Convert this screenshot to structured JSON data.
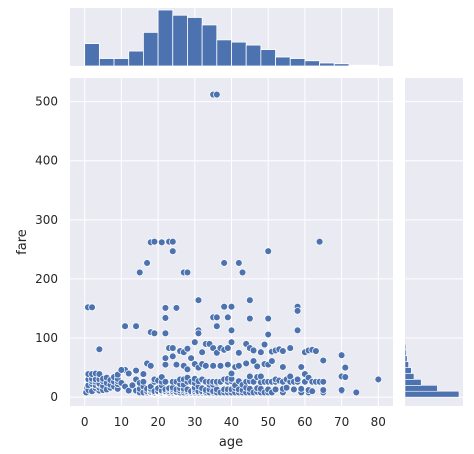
{
  "chart_data": {
    "type": "scatter",
    "title": "",
    "xlabel": "age",
    "ylabel": "fare",
    "xlim": [
      -4,
      84
    ],
    "ylim": [
      -15,
      540
    ],
    "xticks": [
      0,
      10,
      20,
      30,
      40,
      50,
      60,
      70,
      80
    ],
    "yticks": [
      0,
      100,
      200,
      300,
      400,
      500
    ],
    "grid": true,
    "style": "darkgrid",
    "colors": {
      "background": "#eaeaf2",
      "grid": "#ffffff",
      "point_fill": "#4c72b0",
      "point_edge": "#ffffff",
      "bar_fill": "#4c72b0",
      "bar_edge": "#ffffff"
    },
    "marginal_x_histogram": {
      "bin_edges": [
        0,
        4,
        8,
        12,
        16,
        20,
        24,
        28,
        32,
        36,
        40,
        44,
        48,
        52,
        56,
        60,
        64,
        68,
        72,
        76,
        80
      ],
      "counts": [
        30,
        10,
        10,
        20,
        45,
        75,
        68,
        65,
        55,
        35,
        32,
        28,
        22,
        12,
        10,
        7,
        4,
        3,
        1,
        1
      ]
    },
    "marginal_y_histogram": {
      "bin_edges": [
        0,
        10,
        20,
        30,
        40,
        50,
        60,
        70,
        80,
        90,
        100
      ],
      "counts": [
        300,
        180,
        90,
        50,
        35,
        20,
        12,
        8,
        6,
        4
      ]
    },
    "points": [
      [
        0.4,
        8
      ],
      [
        0.7,
        15
      ],
      [
        1,
        12
      ],
      [
        1,
        20
      ],
      [
        1,
        30
      ],
      [
        1,
        39
      ],
      [
        2,
        10
      ],
      [
        2,
        22
      ],
      [
        2,
        27
      ],
      [
        2,
        31
      ],
      [
        2,
        39
      ],
      [
        3,
        15
      ],
      [
        3,
        20
      ],
      [
        3,
        26
      ],
      [
        3,
        30
      ],
      [
        3,
        40
      ],
      [
        4,
        11
      ],
      [
        4,
        16
      ],
      [
        4,
        21
      ],
      [
        4,
        23
      ],
      [
        4,
        30
      ],
      [
        4,
        39
      ],
      [
        5,
        12
      ],
      [
        5,
        19
      ],
      [
        5,
        27
      ],
      [
        5,
        31
      ],
      [
        6,
        13
      ],
      [
        6,
        24
      ],
      [
        6,
        33
      ],
      [
        7,
        16
      ],
      [
        7,
        21
      ],
      [
        7,
        29
      ],
      [
        8,
        18
      ],
      [
        8,
        26
      ],
      [
        8,
        34
      ],
      [
        9,
        14
      ],
      [
        9,
        22
      ],
      [
        9,
        27
      ],
      [
        9,
        31
      ],
      [
        9,
        38
      ],
      [
        10,
        24
      ],
      [
        11,
        18
      ],
      [
        11,
        46
      ],
      [
        12,
        11
      ],
      [
        13,
        20
      ],
      [
        14,
        11
      ],
      [
        14,
        30
      ],
      [
        14,
        45
      ],
      [
        15,
        8
      ],
      [
        15,
        14
      ],
      [
        15,
        24
      ],
      [
        16,
        8
      ],
      [
        16,
        18
      ],
      [
        16,
        26
      ],
      [
        16,
        39
      ],
      [
        17,
        8
      ],
      [
        17,
        10
      ],
      [
        17,
        14
      ],
      [
        17,
        57
      ],
      [
        18,
        8
      ],
      [
        18,
        9
      ],
      [
        18,
        12
      ],
      [
        18,
        14
      ],
      [
        18,
        18
      ],
      [
        18,
        53
      ],
      [
        19,
        7
      ],
      [
        19,
        8
      ],
      [
        19,
        10
      ],
      [
        19,
        26
      ],
      [
        19,
        30
      ],
      [
        20,
        8
      ],
      [
        20,
        9
      ],
      [
        20,
        10
      ],
      [
        20,
        15
      ],
      [
        20,
        28
      ],
      [
        21,
        7
      ],
      [
        21,
        8
      ],
      [
        21,
        10
      ],
      [
        21,
        11
      ],
      [
        21,
        20
      ],
      [
        21,
        26
      ],
      [
        21,
        34
      ],
      [
        22,
        7
      ],
      [
        22,
        8
      ],
      [
        22,
        9
      ],
      [
        22,
        10
      ],
      [
        22,
        13
      ],
      [
        22,
        26
      ],
      [
        22,
        55
      ],
      [
        22,
        66
      ],
      [
        23,
        8
      ],
      [
        23,
        10
      ],
      [
        23,
        13
      ],
      [
        23,
        15
      ],
      [
        23,
        83
      ],
      [
        24,
        8
      ],
      [
        24,
        10
      ],
      [
        24,
        13
      ],
      [
        24,
        16
      ],
      [
        24,
        26
      ],
      [
        24,
        69
      ],
      [
        24,
        83
      ],
      [
        25,
        7
      ],
      [
        25,
        8
      ],
      [
        25,
        9
      ],
      [
        25,
        13
      ],
      [
        25,
        26
      ],
      [
        25,
        55
      ],
      [
        26,
        8
      ],
      [
        26,
        11
      ],
      [
        26,
        15
      ],
      [
        26,
        22
      ],
      [
        26,
        30
      ],
      [
        26,
        78
      ],
      [
        27,
        8
      ],
      [
        27,
        11
      ],
      [
        27,
        14
      ],
      [
        27,
        21
      ],
      [
        27,
        30
      ],
      [
        27,
        53
      ],
      [
        27,
        76
      ],
      [
        28,
        8
      ],
      [
        28,
        10
      ],
      [
        28,
        13
      ],
      [
        28,
        26
      ],
      [
        28,
        33
      ],
      [
        28,
        47
      ],
      [
        28,
        82
      ],
      [
        29,
        7
      ],
      [
        29,
        8
      ],
      [
        29,
        10
      ],
      [
        29,
        26
      ],
      [
        29,
        66
      ],
      [
        30,
        7
      ],
      [
        30,
        8
      ],
      [
        30,
        10
      ],
      [
        30,
        13
      ],
      [
        30,
        16
      ],
      [
        30,
        24
      ],
      [
        30,
        31
      ],
      [
        30,
        56
      ],
      [
        30,
        93
      ],
      [
        31,
        8
      ],
      [
        31,
        10
      ],
      [
        31,
        18
      ],
      [
        31,
        27
      ],
      [
        31,
        50
      ],
      [
        31,
        113
      ],
      [
        32,
        8
      ],
      [
        32,
        10
      ],
      [
        32,
        15
      ],
      [
        32,
        30
      ],
      [
        32,
        56
      ],
      [
        32,
        76
      ],
      [
        33,
        7
      ],
      [
        33,
        9
      ],
      [
        33,
        12
      ],
      [
        33,
        26
      ],
      [
        33,
        53
      ],
      [
        33,
        90
      ],
      [
        34,
        8
      ],
      [
        34,
        13
      ],
      [
        34,
        21
      ],
      [
        34,
        26
      ],
      [
        34,
        90
      ],
      [
        35,
        8
      ],
      [
        35,
        10
      ],
      [
        35,
        21
      ],
      [
        35,
        26
      ],
      [
        35,
        53
      ],
      [
        35,
        83
      ],
      [
        36,
        8
      ],
      [
        36,
        13
      ],
      [
        36,
        24
      ],
      [
        36,
        26
      ],
      [
        36,
        75
      ],
      [
        36,
        120
      ],
      [
        37,
        8
      ],
      [
        37,
        26
      ],
      [
        37,
        53
      ],
      [
        37,
        83
      ],
      [
        38,
        8
      ],
      [
        38,
        13
      ],
      [
        38,
        30
      ],
      [
        38,
        80
      ],
      [
        39,
        8
      ],
      [
        39,
        13
      ],
      [
        39,
        26
      ],
      [
        39,
        31
      ],
      [
        39,
        55
      ],
      [
        39,
        83
      ],
      [
        40,
        8
      ],
      [
        40,
        13
      ],
      [
        40,
        27
      ],
      [
        40,
        31
      ],
      [
        40,
        40
      ],
      [
        40,
        93
      ],
      [
        41,
        8
      ],
      [
        41,
        15
      ],
      [
        41,
        20
      ],
      [
        41,
        51
      ],
      [
        42,
        8
      ],
      [
        42,
        13
      ],
      [
        42,
        27
      ],
      [
        42,
        53
      ],
      [
        42,
        75
      ],
      [
        43,
        8
      ],
      [
        43,
        12
      ],
      [
        43,
        21
      ],
      [
        44,
        8
      ],
      [
        44,
        16
      ],
      [
        44,
        26
      ],
      [
        44,
        57
      ],
      [
        44,
        90
      ],
      [
        45,
        8
      ],
      [
        45,
        14
      ],
      [
        45,
        27
      ],
      [
        45,
        35
      ],
      [
        45,
        83
      ],
      [
        46,
        8
      ],
      [
        46,
        26
      ],
      [
        46,
        61
      ],
      [
        46,
        79
      ],
      [
        47,
        9
      ],
      [
        47,
        15
      ],
      [
        47,
        34
      ],
      [
        47,
        52
      ],
      [
        48,
        8
      ],
      [
        48,
        14
      ],
      [
        48,
        25
      ],
      [
        48,
        35
      ],
      [
        48,
        76
      ],
      [
        49,
        8
      ],
      [
        49,
        26
      ],
      [
        49,
        56
      ],
      [
        49,
        89
      ],
      [
        50,
        8
      ],
      [
        50,
        13
      ],
      [
        50,
        26
      ],
      [
        50,
        55
      ],
      [
        50,
        106
      ],
      [
        51,
        8
      ],
      [
        51,
        26
      ],
      [
        51,
        61
      ],
      [
        51,
        77
      ],
      [
        52,
        13
      ],
      [
        52,
        26
      ],
      [
        52,
        30
      ],
      [
        52,
        79
      ],
      [
        53,
        28
      ],
      [
        53,
        81
      ],
      [
        54,
        8
      ],
      [
        54,
        14
      ],
      [
        54,
        26
      ],
      [
        54,
        51
      ],
      [
        54,
        78
      ],
      [
        55,
        16
      ],
      [
        55,
        30
      ],
      [
        56,
        26
      ],
      [
        56,
        35
      ],
      [
        56,
        83
      ],
      [
        57,
        13
      ],
      [
        57,
        26
      ],
      [
        58,
        26
      ],
      [
        58,
        30
      ],
      [
        58,
        113
      ],
      [
        59,
        8
      ],
      [
        59,
        14
      ],
      [
        59,
        51
      ],
      [
        60,
        26
      ],
      [
        60,
        39
      ],
      [
        60,
        76
      ],
      [
        61,
        8
      ],
      [
        61,
        12
      ],
      [
        61,
        33
      ],
      [
        61,
        79
      ],
      [
        62,
        10
      ],
      [
        62,
        26
      ],
      [
        62,
        80
      ],
      [
        63,
        26
      ],
      [
        63,
        78
      ],
      [
        64,
        26
      ],
      [
        65,
        8
      ],
      [
        65,
        12
      ],
      [
        65,
        26
      ],
      [
        65,
        62
      ],
      [
        70,
        10
      ],
      [
        70,
        12
      ],
      [
        70,
        35
      ],
      [
        70,
        71
      ],
      [
        71,
        34
      ],
      [
        71,
        50
      ],
      [
        74,
        8
      ],
      [
        80,
        30
      ],
      [
        0.9,
        152
      ],
      [
        2,
        152
      ],
      [
        4,
        81
      ],
      [
        11,
        120
      ],
      [
        14,
        120
      ],
      [
        15,
        211
      ],
      [
        17,
        227
      ],
      [
        18,
        262
      ],
      [
        18,
        110
      ],
      [
        19,
        108
      ],
      [
        19,
        263
      ],
      [
        21,
        262
      ],
      [
        22,
        151
      ],
      [
        22,
        134
      ],
      [
        23,
        263
      ],
      [
        24,
        247
      ],
      [
        24,
        263
      ],
      [
        25,
        151
      ],
      [
        27,
        211
      ],
      [
        28,
        211
      ],
      [
        31,
        164
      ],
      [
        35,
        512
      ],
      [
        36,
        512
      ],
      [
        35,
        135
      ],
      [
        36,
        135
      ],
      [
        38,
        227
      ],
      [
        38,
        153
      ],
      [
        39,
        135
      ],
      [
        40,
        153
      ],
      [
        42,
        227
      ],
      [
        43,
        211
      ],
      [
        45,
        164
      ],
      [
        50,
        247
      ],
      [
        50,
        133
      ],
      [
        58,
        153
      ],
      [
        58,
        146
      ],
      [
        64,
        263
      ],
      [
        16,
        39
      ],
      [
        12,
        40
      ],
      [
        10,
        46
      ],
      [
        31,
        108
      ],
      [
        22,
        108
      ],
      [
        40,
        113
      ],
      [
        45,
        133
      ]
    ]
  }
}
